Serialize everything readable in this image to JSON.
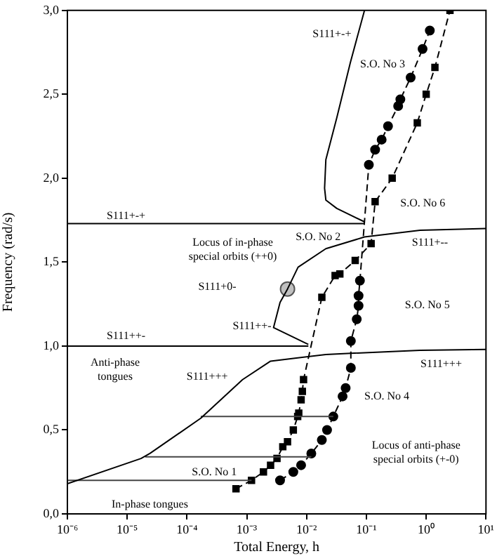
{
  "chart_data": {
    "type": "line",
    "xlabel": "Total Energy, h",
    "ylabel": "Frequency (rad/s)",
    "log": "x",
    "legend": false,
    "grid": false,
    "xlim": [
      1e-06,
      10
    ],
    "ylim": [
      0,
      3
    ],
    "xticks": [
      {
        "value": 1e-06,
        "label": "10⁻⁶"
      },
      {
        "value": 1e-05,
        "label": "10⁻⁵"
      },
      {
        "value": 0.0001,
        "label": "10⁻⁴"
      },
      {
        "value": 0.001,
        "label": "10⁻³"
      },
      {
        "value": 0.01,
        "label": "10⁻²"
      },
      {
        "value": 0.1,
        "label": "10⁻¹"
      },
      {
        "value": 1,
        "label": "10⁰"
      },
      {
        "value": 10,
        "label": "10¹"
      }
    ],
    "yticks": [
      {
        "value": 0,
        "label": "0,0"
      },
      {
        "value": 0.5,
        "label": "0,5"
      },
      {
        "value": 1,
        "label": "1,0"
      },
      {
        "value": 1.5,
        "label": "1,5"
      },
      {
        "value": 2,
        "label": "2,0"
      },
      {
        "value": 2.5,
        "label": "2,5"
      },
      {
        "value": 3,
        "label": "3,0"
      }
    ],
    "series": [
      {
        "type": "line",
        "color": "#000000",
        "marker": "none",
        "line_style": "solid",
        "x": [
          1e-06,
          0.093
        ],
        "values": [
          1.73,
          1.73
        ]
      },
      {
        "type": "line",
        "color": "#000000",
        "marker": "none",
        "line_style": "solid",
        "x": [
          0.093,
          0.032,
          0.021,
          0.02,
          0.021,
          0.032,
          0.054,
          0.093
        ],
        "values": [
          1.74,
          1.82,
          1.87,
          1.94,
          2.11,
          2.36,
          2.69,
          3.0
        ]
      },
      {
        "type": "line",
        "color": "#000000",
        "marker": "none",
        "line_style": "solid",
        "x": [
          1e-06,
          0.0107
        ],
        "values": [
          1.0,
          1.0
        ]
      },
      {
        "type": "line",
        "color": "#000000",
        "marker": "none",
        "line_style": "solid",
        "x": [
          0.0107,
          0.0028,
          0.0036,
          0.0048,
          0.0072,
          0.021,
          0.093,
          0.79,
          10
        ],
        "values": [
          1.01,
          1.11,
          1.26,
          1.34,
          1.47,
          1.58,
          1.65,
          1.69,
          1.7
        ]
      },
      {
        "type": "line",
        "color": "#000000",
        "marker": "none",
        "line_style": "solid",
        "x": [
          1e-06,
          1.7e-05,
          2.4e-05,
          0.00017,
          0.00085,
          0.0025,
          0.021,
          0.79,
          10
        ],
        "values": [
          0.18,
          0.33,
          0.36,
          0.57,
          0.8,
          0.91,
          0.95,
          0.975,
          0.98
        ]
      },
      {
        "type": "line",
        "color": "#444444",
        "marker": "none",
        "line_style": "solid",
        "x": [
          1e-06,
          0.0012
        ],
        "values": [
          0.2,
          0.2
        ]
      },
      {
        "type": "line",
        "color": "#444444",
        "marker": "none",
        "line_style": "solid",
        "x": [
          2e-05,
          0.012
        ],
        "values": [
          0.34,
          0.34
        ]
      },
      {
        "type": "line",
        "color": "#444444",
        "marker": "none",
        "line_style": "solid",
        "x": [
          0.00017,
          0.028
        ],
        "values": [
          0.58,
          0.58
        ]
      },
      {
        "type": "line",
        "color": "#000000",
        "marker": "square",
        "line_style": "dashed",
        "x": [
          0.00066,
          0.0012,
          0.0019,
          0.0025,
          0.0032,
          0.004,
          0.0048,
          0.006,
          0.0071,
          0.0074,
          0.0081,
          0.0085,
          0.0089,
          0.018,
          0.03,
          0.036,
          0.065,
          0.12,
          0.14,
          0.27,
          0.71,
          1.0,
          1.4,
          2.5
        ],
        "values": [
          0.15,
          0.2,
          0.25,
          0.29,
          0.33,
          0.4,
          0.43,
          0.5,
          0.58,
          0.6,
          0.68,
          0.73,
          0.8,
          1.29,
          1.42,
          1.43,
          1.51,
          1.61,
          1.86,
          2.0,
          2.33,
          2.5,
          2.66,
          3.0
        ]
      },
      {
        "type": "line",
        "color": "#000000",
        "marker": "circle",
        "line_style": "dashed",
        "x": [
          0.0036,
          0.006,
          0.0081,
          0.012,
          0.018,
          0.022,
          0.028,
          0.04,
          0.045,
          0.055,
          0.055,
          0.069,
          0.074,
          0.074,
          0.078,
          0.11,
          0.14,
          0.18,
          0.23,
          0.34,
          0.37,
          0.55,
          0.87,
          1.15
        ],
        "values": [
          0.2,
          0.25,
          0.29,
          0.36,
          0.44,
          0.5,
          0.58,
          0.7,
          0.75,
          0.87,
          1.03,
          1.16,
          1.24,
          1.3,
          1.39,
          2.08,
          2.17,
          2.23,
          2.31,
          2.43,
          2.47,
          2.6,
          2.77,
          2.88
        ]
      },
      {
        "type": "scatter",
        "color": "#c0c0c0",
        "marker": "circle",
        "x": [
          0.0048
        ],
        "values": [
          1.34
        ]
      }
    ],
    "annotations": [
      "S111+-+",
      "S.O. No 3",
      "S.O. No 6",
      "S111+-+",
      "S.O. No 2",
      "Locus of in-phase\nspecial orbits (++0)",
      "S111+--",
      "S111+0-",
      "S111++-",
      "S.O. No 5",
      "S111++-",
      "S111+++",
      "S111+++",
      "Anti-phase\ntongues",
      "S.O. No 4",
      "Locus of anti-phase\nspecial orbits (+-0)",
      "S.O. No 1",
      "In-phase tongues"
    ]
  }
}
